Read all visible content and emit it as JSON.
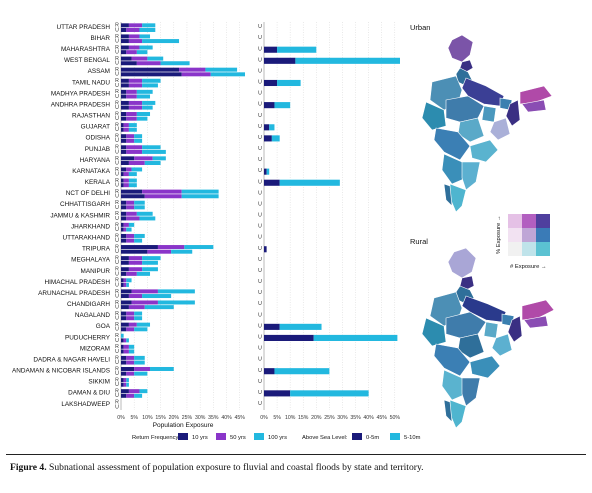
{
  "caption": {
    "label": "Figure 4.",
    "text": "Subnational assessment of population exposure to fluvial and coastal floods by state and territory."
  },
  "maps": {
    "urban_title": "Urban",
    "rural_title": "Rural",
    "legend_y_label": "% Exposure →",
    "legend_x_label": "# Exposure →"
  },
  "chart_data": {
    "type": "bar",
    "orientation": "horizontal",
    "stacked": true,
    "xlabel": "Population Exposure",
    "xticks": [
      "0%",
      "5%",
      "10%",
      "15%",
      "20%",
      "25%",
      "30%",
      "35%",
      "40%",
      "45%"
    ],
    "xticks_right": [
      "0%",
      "5%",
      "10%",
      "15%",
      "20%",
      "25%",
      "30%",
      "35%",
      "40%",
      "45%",
      "50%"
    ],
    "xlim_left": [
      0,
      47
    ],
    "xlim_right": [
      0,
      52
    ],
    "row_letters": [
      "R",
      "U"
    ],
    "right_row_letter": "U",
    "states": [
      "UTTAR PRADESH",
      "BIHAR",
      "MAHARASHTRA",
      "WEST BENGAL",
      "ASSAM",
      "TAMIL NADU",
      "MADHYA PRADESH",
      "ANDHRA PRADESH",
      "RAJASTHAN",
      "GUJARAT",
      "ODISHA",
      "PUNJAB",
      "HARYANA",
      "KARNATAKA",
      "KERALA",
      "NCT OF DELHI",
      "CHHATTISGARH",
      "JAMMU & KASHMIR",
      "JHARKHAND",
      "UTTARAKHAND",
      "TRIPURA",
      "MEGHALAYA",
      "MANIPUR",
      "HIMACHAL PRADESH",
      "ARUNACHAL PRADESH",
      "CHANDIGARH",
      "NAGALAND",
      "GOA",
      "PUDUCHERRY",
      "MIZORAM",
      "DADRA & NAGAR HAVELI",
      "ANDAMAN & NICOBAR ISLANDS",
      "SIKKIM",
      "DAMAN & DIU",
      "LAKSHADWEEP"
    ],
    "return_frequency": {
      "title": "Return Frequency:",
      "series": [
        {
          "name": "10 yrs",
          "color": "#1a1a7a"
        },
        {
          "name": "50 yrs",
          "color": "#8a35c9"
        },
        {
          "name": "100 yrs",
          "color": "#22b8df"
        }
      ],
      "rural": [
        [
          3,
          5,
          5
        ],
        [
          3,
          4,
          4
        ],
        [
          3,
          4,
          5
        ],
        [
          4,
          6,
          6
        ],
        [
          22,
          10,
          12
        ],
        [
          3,
          5,
          7
        ],
        [
          2,
          4,
          6
        ],
        [
          3,
          5,
          5
        ],
        [
          2,
          4,
          5
        ],
        [
          1,
          2,
          3
        ],
        [
          2,
          3,
          3
        ],
        [
          2,
          6,
          7
        ],
        [
          5,
          7,
          5
        ],
        [
          2,
          2,
          4
        ],
        [
          1,
          2,
          3
        ],
        [
          8,
          15,
          14
        ],
        [
          2,
          3,
          4
        ],
        [
          2,
          4,
          6
        ],
        [
          1,
          2,
          2
        ],
        [
          2,
          3,
          4
        ],
        [
          14,
          10,
          11
        ],
        [
          3,
          5,
          7
        ],
        [
          3,
          5,
          6
        ],
        [
          1,
          1,
          2
        ],
        [
          4,
          10,
          14
        ],
        [
          4,
          10,
          14
        ],
        [
          2,
          3,
          3
        ],
        [
          3,
          3,
          5
        ],
        [
          0,
          0,
          1
        ],
        [
          1,
          2,
          2
        ],
        [
          2,
          3,
          4
        ],
        [
          5,
          6,
          9
        ],
        [
          1,
          1,
          1
        ],
        [
          3,
          4,
          3
        ],
        [
          0,
          0,
          0
        ]
      ],
      "urban": [
        [
          2,
          5,
          6
        ],
        [
          3,
          5,
          14
        ],
        [
          2,
          4,
          4
        ],
        [
          6,
          9,
          11
        ],
        [
          23,
          11,
          13
        ],
        [
          3,
          5,
          6
        ],
        [
          2,
          4,
          5
        ],
        [
          3,
          5,
          4
        ],
        [
          2,
          4,
          4
        ],
        [
          1,
          2,
          3
        ],
        [
          2,
          3,
          3
        ],
        [
          2,
          6,
          9
        ],
        [
          3,
          6,
          6
        ],
        [
          1,
          2,
          3
        ],
        [
          1,
          2,
          3
        ],
        [
          9,
          14,
          14
        ],
        [
          2,
          3,
          4
        ],
        [
          2,
          5,
          6
        ],
        [
          1,
          1,
          2
        ],
        [
          2,
          3,
          3
        ],
        [
          10,
          9,
          8
        ],
        [
          3,
          5,
          6
        ],
        [
          2,
          4,
          5
        ],
        [
          1,
          1,
          1
        ],
        [
          3,
          5,
          11
        ],
        [
          3,
          6,
          11
        ],
        [
          2,
          3,
          3
        ],
        [
          2,
          3,
          5
        ],
        [
          1,
          1,
          1
        ],
        [
          1,
          2,
          2
        ],
        [
          2,
          3,
          4
        ],
        [
          2,
          3,
          5
        ],
        [
          1,
          1,
          1
        ],
        [
          2,
          3,
          3
        ],
        [
          0,
          0,
          0
        ]
      ]
    },
    "sea_level": {
      "title": "Above Sea Level:",
      "series": [
        {
          "name": "0-5m",
          "color": "#1a1a7a"
        },
        {
          "name": "5-10m",
          "color": "#22b8df"
        }
      ],
      "urban": [
        [
          0,
          0
        ],
        [
          0,
          0
        ],
        [
          5,
          15
        ],
        [
          12,
          40
        ],
        [
          0,
          0
        ],
        [
          5,
          9
        ],
        [
          0,
          0
        ],
        [
          4,
          6
        ],
        [
          0,
          0
        ],
        [
          2,
          2
        ],
        [
          3,
          3
        ],
        [
          0,
          0
        ],
        [
          0,
          0
        ],
        [
          1,
          1
        ],
        [
          6,
          23
        ],
        [
          0,
          0
        ],
        [
          0,
          0
        ],
        [
          0,
          0
        ],
        [
          0,
          0
        ],
        [
          0,
          0
        ],
        [
          1,
          0
        ],
        [
          0,
          0
        ],
        [
          0,
          0
        ],
        [
          0,
          0
        ],
        [
          0,
          0
        ],
        [
          0,
          0
        ],
        [
          0,
          0
        ],
        [
          6,
          16
        ],
        [
          19,
          32
        ],
        [
          0,
          0
        ],
        [
          0,
          0
        ],
        [
          4,
          21
        ],
        [
          0,
          0
        ],
        [
          10,
          30
        ],
        [
          0,
          0
        ]
      ]
    }
  }
}
